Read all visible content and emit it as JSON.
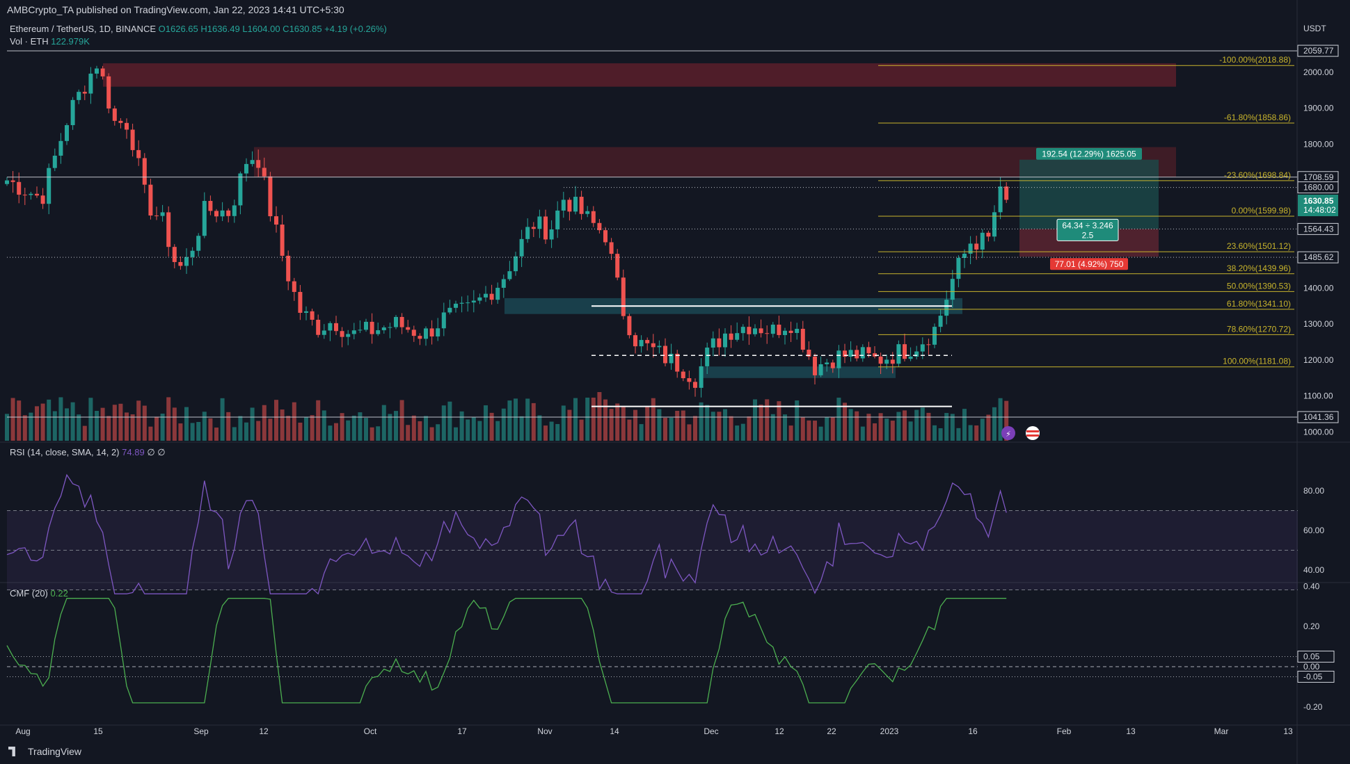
{
  "header": {
    "published": "AMBCrypto_TA published on TradingView.com, Jan 22, 2023 14:41 UTC+5:30",
    "symbol": "Ethereum / TetherUS, 1D, BINANCE",
    "ohlc": "O1626.65 H1636.49 L1604.00 C1630.85 +4.19 (+0.26%)",
    "vol_label": "Vol · ETH",
    "vol_value": "122.979K",
    "unit": "USDT"
  },
  "indicators": {
    "rsi_label": "RSI (14, close, SMA, 14, 2)",
    "rsi_value": "74.89",
    "rsi_extra": "∅ ∅",
    "cmf_label": "CMF (20)",
    "cmf_value": "0.22"
  },
  "brand": "TradingView",
  "colors": {
    "background": "#131722",
    "up": "#26a69a",
    "down": "#ef5350",
    "fib": "#c9b52c",
    "rsi": "#7e57c2",
    "cmf": "#4caf50",
    "supply_zone": "#5b1f2a",
    "demand_zone": "#1b4a56"
  },
  "chart_data": {
    "type": "candlestick",
    "symbol": "ETH/USDT",
    "timeframe": "1D",
    "x_ticks": [
      "Aug",
      "15",
      "Sep",
      "12",
      "Oct",
      "17",
      "Nov",
      "14",
      "Dec",
      "12",
      "22",
      "2023",
      "16",
      "Feb",
      "13",
      "Mar",
      "13"
    ],
    "y_ticks": [
      "2000.00",
      "1900.00",
      "1800.00",
      "1400.00",
      "1300.00",
      "1200.00",
      "1100.00",
      "1000.00"
    ],
    "price_markers": [
      {
        "value": "2059.77",
        "style": "dark"
      },
      {
        "value": "1708.59",
        "style": "dark"
      },
      {
        "value": "1680.00",
        "style": "dark"
      },
      {
        "value": "1564.43",
        "style": "dark"
      },
      {
        "value": "1485.62",
        "style": "dark"
      },
      {
        "value": "1041.36",
        "style": "dark"
      }
    ],
    "last_price": {
      "value": "1630.85",
      "countdown": "14:48:02"
    },
    "fib_levels": [
      {
        "label": "-100.00%(2018.88)",
        "price": 2018.88
      },
      {
        "label": "-61.80%(1858.86)",
        "price": 1858.86
      },
      {
        "label": "-23.60%(1698.84)",
        "price": 1698.84
      },
      {
        "label": "0.00%(1599.98)",
        "price": 1599.98
      },
      {
        "label": "23.60%(1501.12)",
        "price": 1501.12
      },
      {
        "label": "38.20%(1439.96)",
        "price": 1439.96
      },
      {
        "label": "50.00%(1390.53)",
        "price": 1390.53
      },
      {
        "label": "61.80%(1341.10)",
        "price": 1341.1
      },
      {
        "label": "78.60%(1270.72)",
        "price": 1270.72
      },
      {
        "label": "100.00%(1181.08)",
        "price": 1181.08
      }
    ],
    "position": {
      "target_label": "192.54 (12.29%) 1625.05",
      "ratio_label_1": "64.34 ÷ 3.246",
      "ratio_label_2": "2.5",
      "stop_label": "77.01 (4.92%) 750",
      "entry": 1564.43,
      "target": 1757,
      "stop": 1487.4
    },
    "zones": [
      {
        "kind": "supply",
        "from": 1960,
        "to": 2025
      },
      {
        "kind": "supply",
        "from": 1708.6,
        "to": 1792
      },
      {
        "kind": "demand",
        "from": 1328,
        "to": 1372
      },
      {
        "kind": "demand",
        "from": 1150,
        "to": 1182
      }
    ],
    "range_lines": [
      1350,
      1071
    ],
    "range_mid": 1213,
    "rsi": {
      "ticks": [
        "80.00",
        "60.00",
        "40.00"
      ],
      "overbought": 70,
      "mid": 50,
      "oversold": 30,
      "last": 74.89
    },
    "cmf": {
      "ticks": [
        "0.40",
        "0.20",
        "0.05",
        "0.00",
        "-0.05",
        "-0.20"
      ],
      "last": 0.22
    }
  }
}
